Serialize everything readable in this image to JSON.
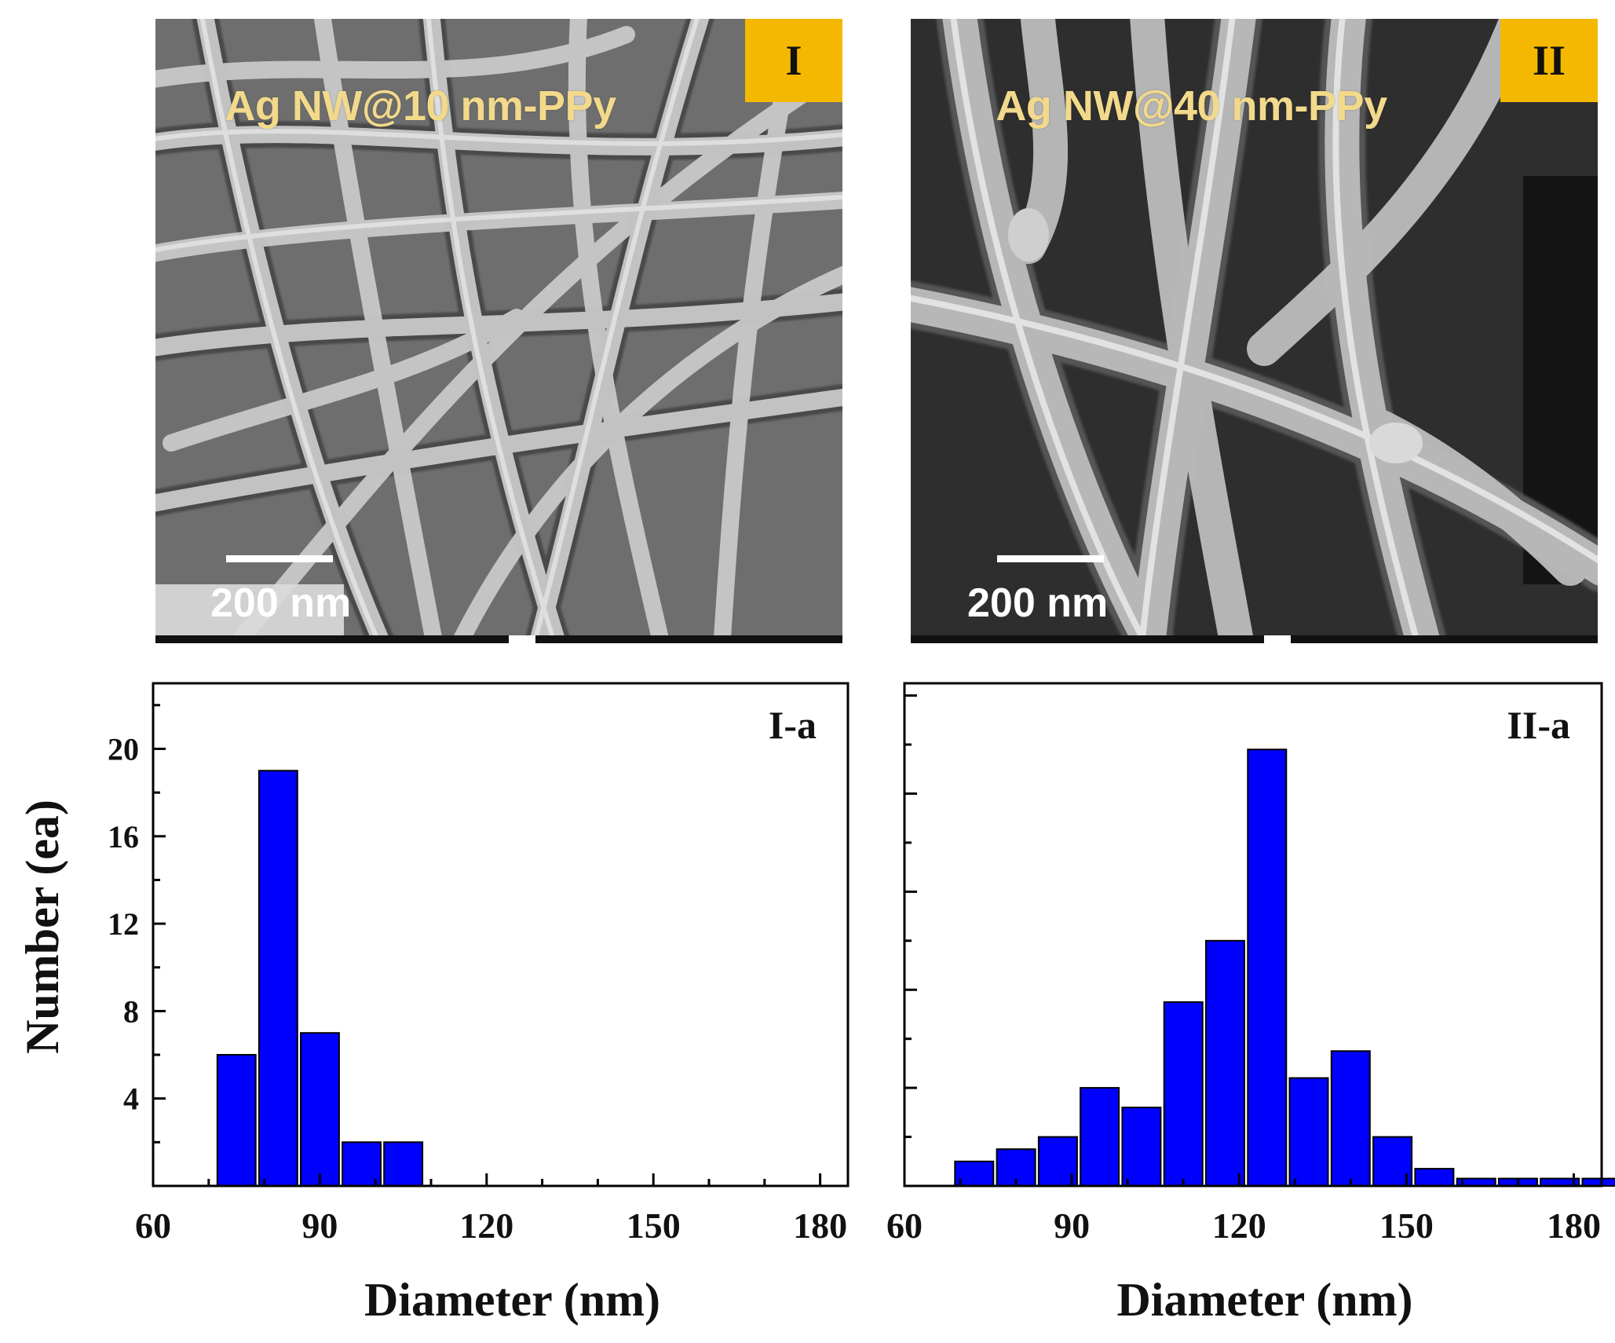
{
  "micrographs": [
    {
      "panel": "I",
      "label": "Ag NW@10 nm-PPy",
      "scale_bar": "200 nm"
    },
    {
      "panel": "II",
      "label": "Ag NW@40 nm-PPy",
      "scale_bar": "200 nm"
    }
  ],
  "ylabel": "Number (ea)",
  "chart_data": [
    {
      "type": "bar",
      "panel": "I-a",
      "xlabel": "Diameter (nm)",
      "ylabel": "Number (ea)",
      "xlim": [
        60,
        185
      ],
      "ylim": [
        0,
        23
      ],
      "xticks": [
        60,
        90,
        120,
        150,
        180
      ],
      "yticks": [
        4,
        8,
        12,
        16,
        20
      ],
      "bar_color": "#0000ff",
      "x": [
        75,
        82.5,
        90,
        97.5,
        105
      ],
      "values": [
        6,
        19,
        7,
        2,
        2
      ]
    },
    {
      "type": "bar",
      "panel": "II-a",
      "xlabel": "Diameter (nm)",
      "xlim": [
        60,
        185
      ],
      "ylim": [
        0,
        20.5
      ],
      "xticks": [
        60,
        90,
        120,
        150,
        180
      ],
      "bar_color": "#0000ff",
      "x": [
        72.5,
        80,
        87.5,
        95,
        102.5,
        110,
        117.5,
        125,
        132.5,
        140,
        147.5,
        155,
        162.5,
        170,
        177.5,
        185
      ],
      "values": [
        1,
        1.5,
        2,
        4,
        3.2,
        7.5,
        10,
        17.8,
        4.4,
        5.5,
        2,
        0.7,
        0.3,
        0.3,
        0.3,
        0.3
      ]
    }
  ]
}
